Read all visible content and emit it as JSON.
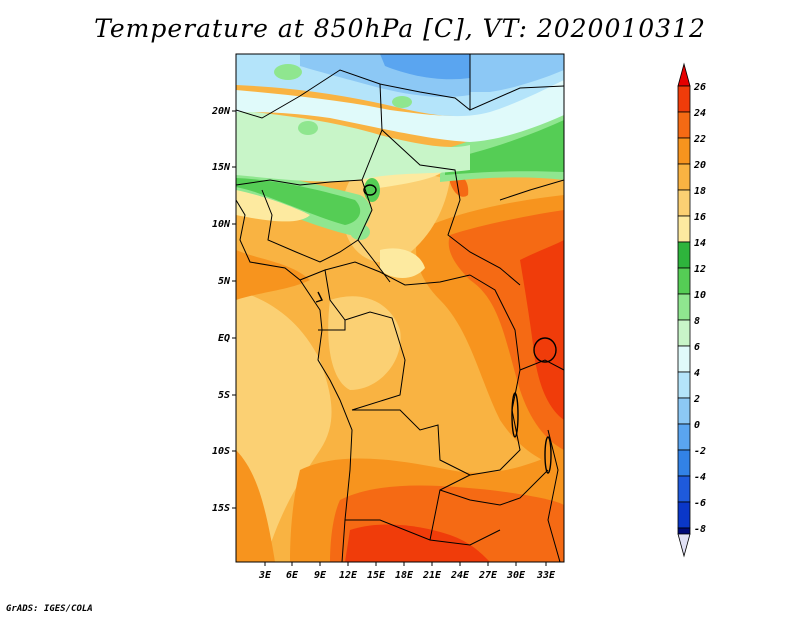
{
  "title": "Temperature at 850hPa [C], VT: 2020010312",
  "credit": "GrADS: IGES/COLA",
  "map": {
    "lon_labels": [
      "3E",
      "6E",
      "9E",
      "12E",
      "15E",
      "18E",
      "21E",
      "24E",
      "27E",
      "30E",
      "33E"
    ],
    "lat_labels": [
      "20N",
      "15N",
      "10N",
      "5N",
      "EQ",
      "5S",
      "10S",
      "15S"
    ]
  },
  "colorbar": {
    "levels": [
      "26",
      "24",
      "22",
      "20",
      "18",
      "16",
      "14",
      "12",
      "10",
      "8",
      "6",
      "4",
      "2",
      "0",
      "-2",
      "-4",
      "-6",
      "-8"
    ],
    "colors": {
      "top_arrow": "#e60000",
      "c24_26": "#f03c0a",
      "c22_24": "#f56a14",
      "c20_22": "#f7941e",
      "c18_20": "#f9b342",
      "c16_18": "#fbd073",
      "c14_16": "#fdeaa0",
      "c12_14": "#2eb43c",
      "c10_12": "#55cd55",
      "c8_10": "#8fe68f",
      "c6_8": "#c8f5c8",
      "c4_6": "#e0fafa",
      "c2_4": "#b4e4fa",
      "c0_2": "#8cc8f5",
      "cm2_0": "#5aa5f0",
      "cm4_m2": "#3282e6",
      "cm6_m4": "#1e5adc",
      "cm8_m6": "#0a37c8",
      "bottom_band": "#000a78",
      "bottom_arrow": "#e1e1f5"
    }
  }
}
